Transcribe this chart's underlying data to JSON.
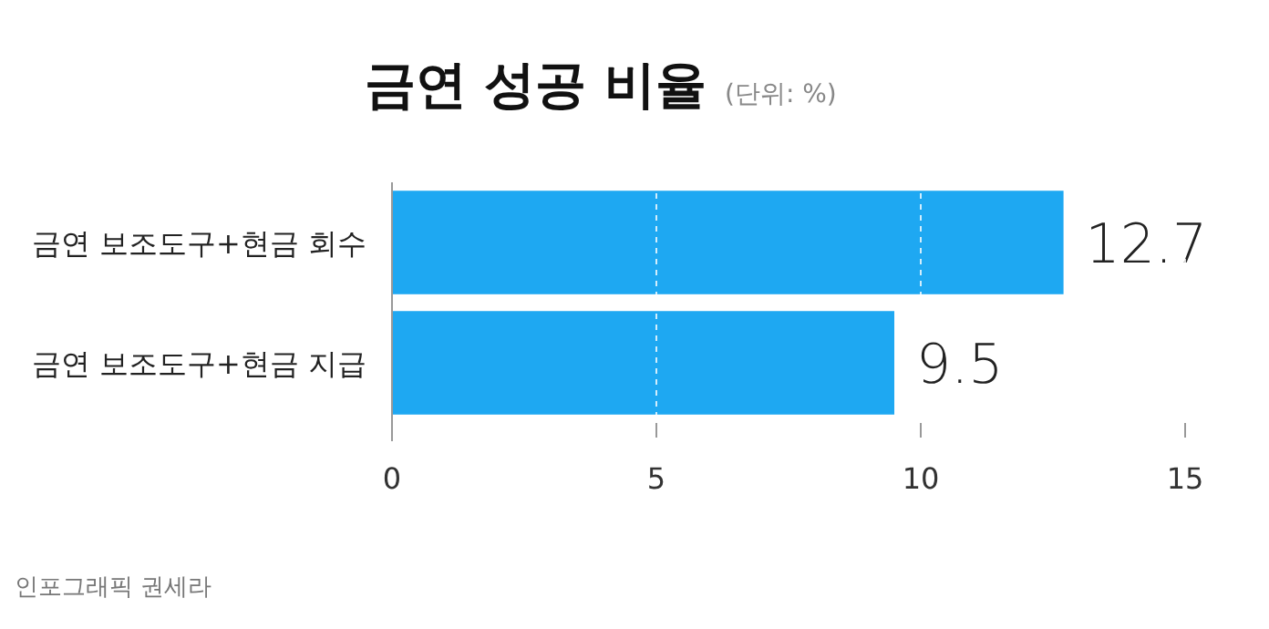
{
  "chart_data": {
    "type": "bar",
    "orientation": "horizontal",
    "title": "금연 성공 비율",
    "subtitle": "(단위: %)",
    "categories": [
      "금연 보조도구+현금 회수",
      "금연 보조도구+현금 지급"
    ],
    "values": [
      12.7,
      9.5
    ],
    "color": "#1ea8f2",
    "data_labels": true,
    "xlim": [
      0,
      15
    ],
    "xticks": [
      0,
      5,
      10,
      15
    ],
    "grid": "x",
    "annotations": [
      "인포그래픽 권세라"
    ]
  }
}
